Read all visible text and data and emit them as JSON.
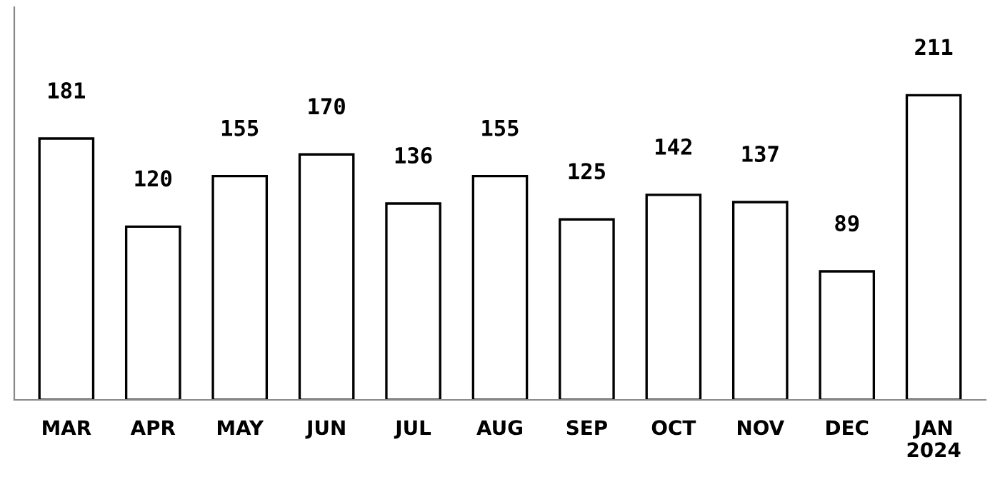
{
  "chart_data": {
    "type": "bar",
    "categories": [
      "MAR",
      "APR",
      "MAY",
      "JUN",
      "JUL",
      "AUG",
      "SEP",
      "OCT",
      "NOV",
      "DEC",
      "JAN\n2024"
    ],
    "values": [
      181,
      120,
      155,
      170,
      136,
      155,
      125,
      142,
      137,
      89,
      211
    ],
    "color": "#ffffff",
    "ylim": [
      0,
      272
    ],
    "data_labels": true,
    "grid": false,
    "legend": false,
    "tick_labels": "x"
  }
}
